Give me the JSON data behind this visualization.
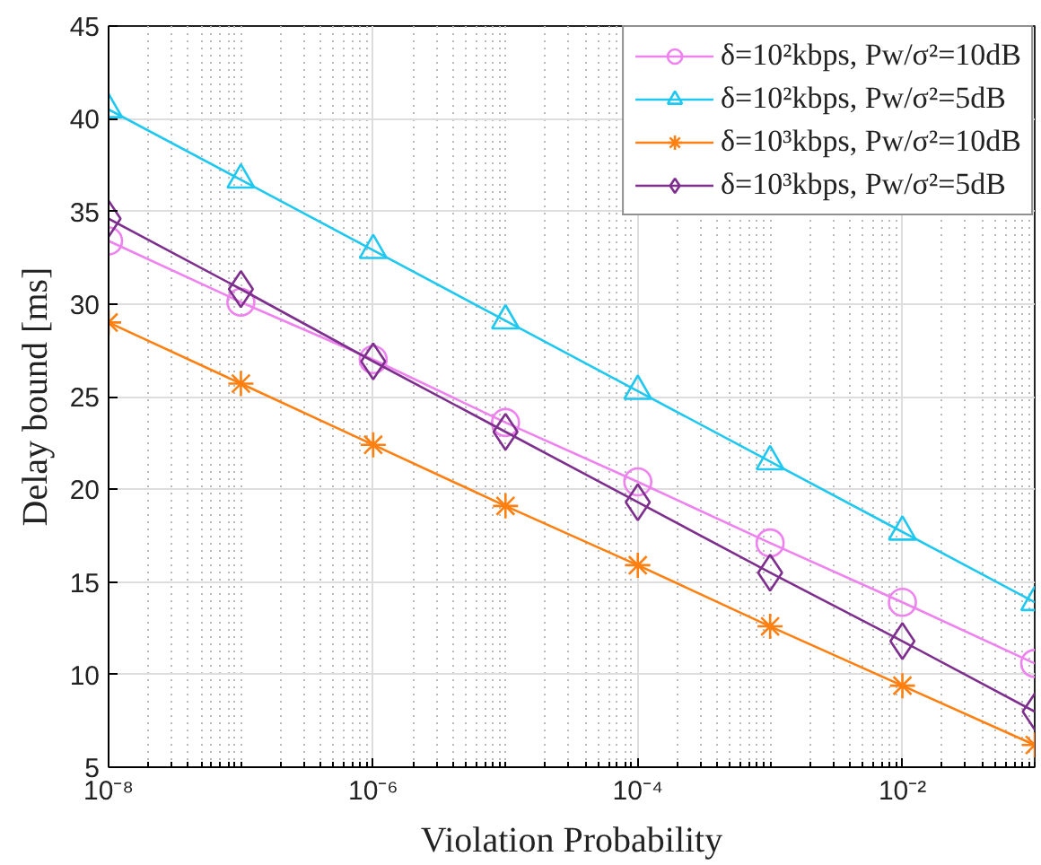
{
  "chart_data": {
    "type": "line",
    "xlabel": "Violation Probability",
    "ylabel": "Delay bound [ms]",
    "log": "x",
    "grid": true,
    "legend": "top right",
    "x": [
      1e-08,
      1e-07,
      1e-06,
      1e-05,
      0.0001,
      0.001,
      0.01,
      0.1
    ],
    "xlim": [
      1e-08,
      0.1
    ],
    "ylim": [
      5,
      45
    ],
    "xticks": [
      {
        "value": 1e-08,
        "label": "10⁻⁸"
      },
      {
        "value": 1e-06,
        "label": "10⁻⁶"
      },
      {
        "value": 0.0001,
        "label": "10⁻⁴"
      },
      {
        "value": 0.01,
        "label": "10⁻²"
      }
    ],
    "yticks": [
      5,
      10,
      15,
      20,
      25,
      30,
      35,
      40,
      45
    ],
    "series": [
      {
        "name": "δ=10²kbps, Pw/σ²=10dB",
        "color": "#ee82ee",
        "marker": "circle",
        "values": [
          33.4,
          30.1,
          27.0,
          23.6,
          20.4,
          17.1,
          13.9,
          10.6
        ]
      },
      {
        "name": "δ=10²kbps, Pw/σ²=5dB",
        "color": "#1ec8f0",
        "marker": "triangle",
        "values": [
          40.5,
          36.7,
          32.9,
          29.1,
          25.3,
          21.5,
          17.7,
          13.9
        ]
      },
      {
        "name": "δ=10³kbps, Pw/σ²=10dB",
        "color": "#ff8010",
        "marker": "cross",
        "values": [
          29.0,
          25.7,
          22.4,
          19.1,
          15.9,
          12.6,
          9.4,
          6.2
        ]
      },
      {
        "name": "δ=10³kbps, Pw/σ²=5dB",
        "color": "#7e2f8e",
        "marker": "diamond",
        "values": [
          34.6,
          30.8,
          26.9,
          23.1,
          19.3,
          15.5,
          11.8,
          8.0
        ]
      }
    ]
  }
}
